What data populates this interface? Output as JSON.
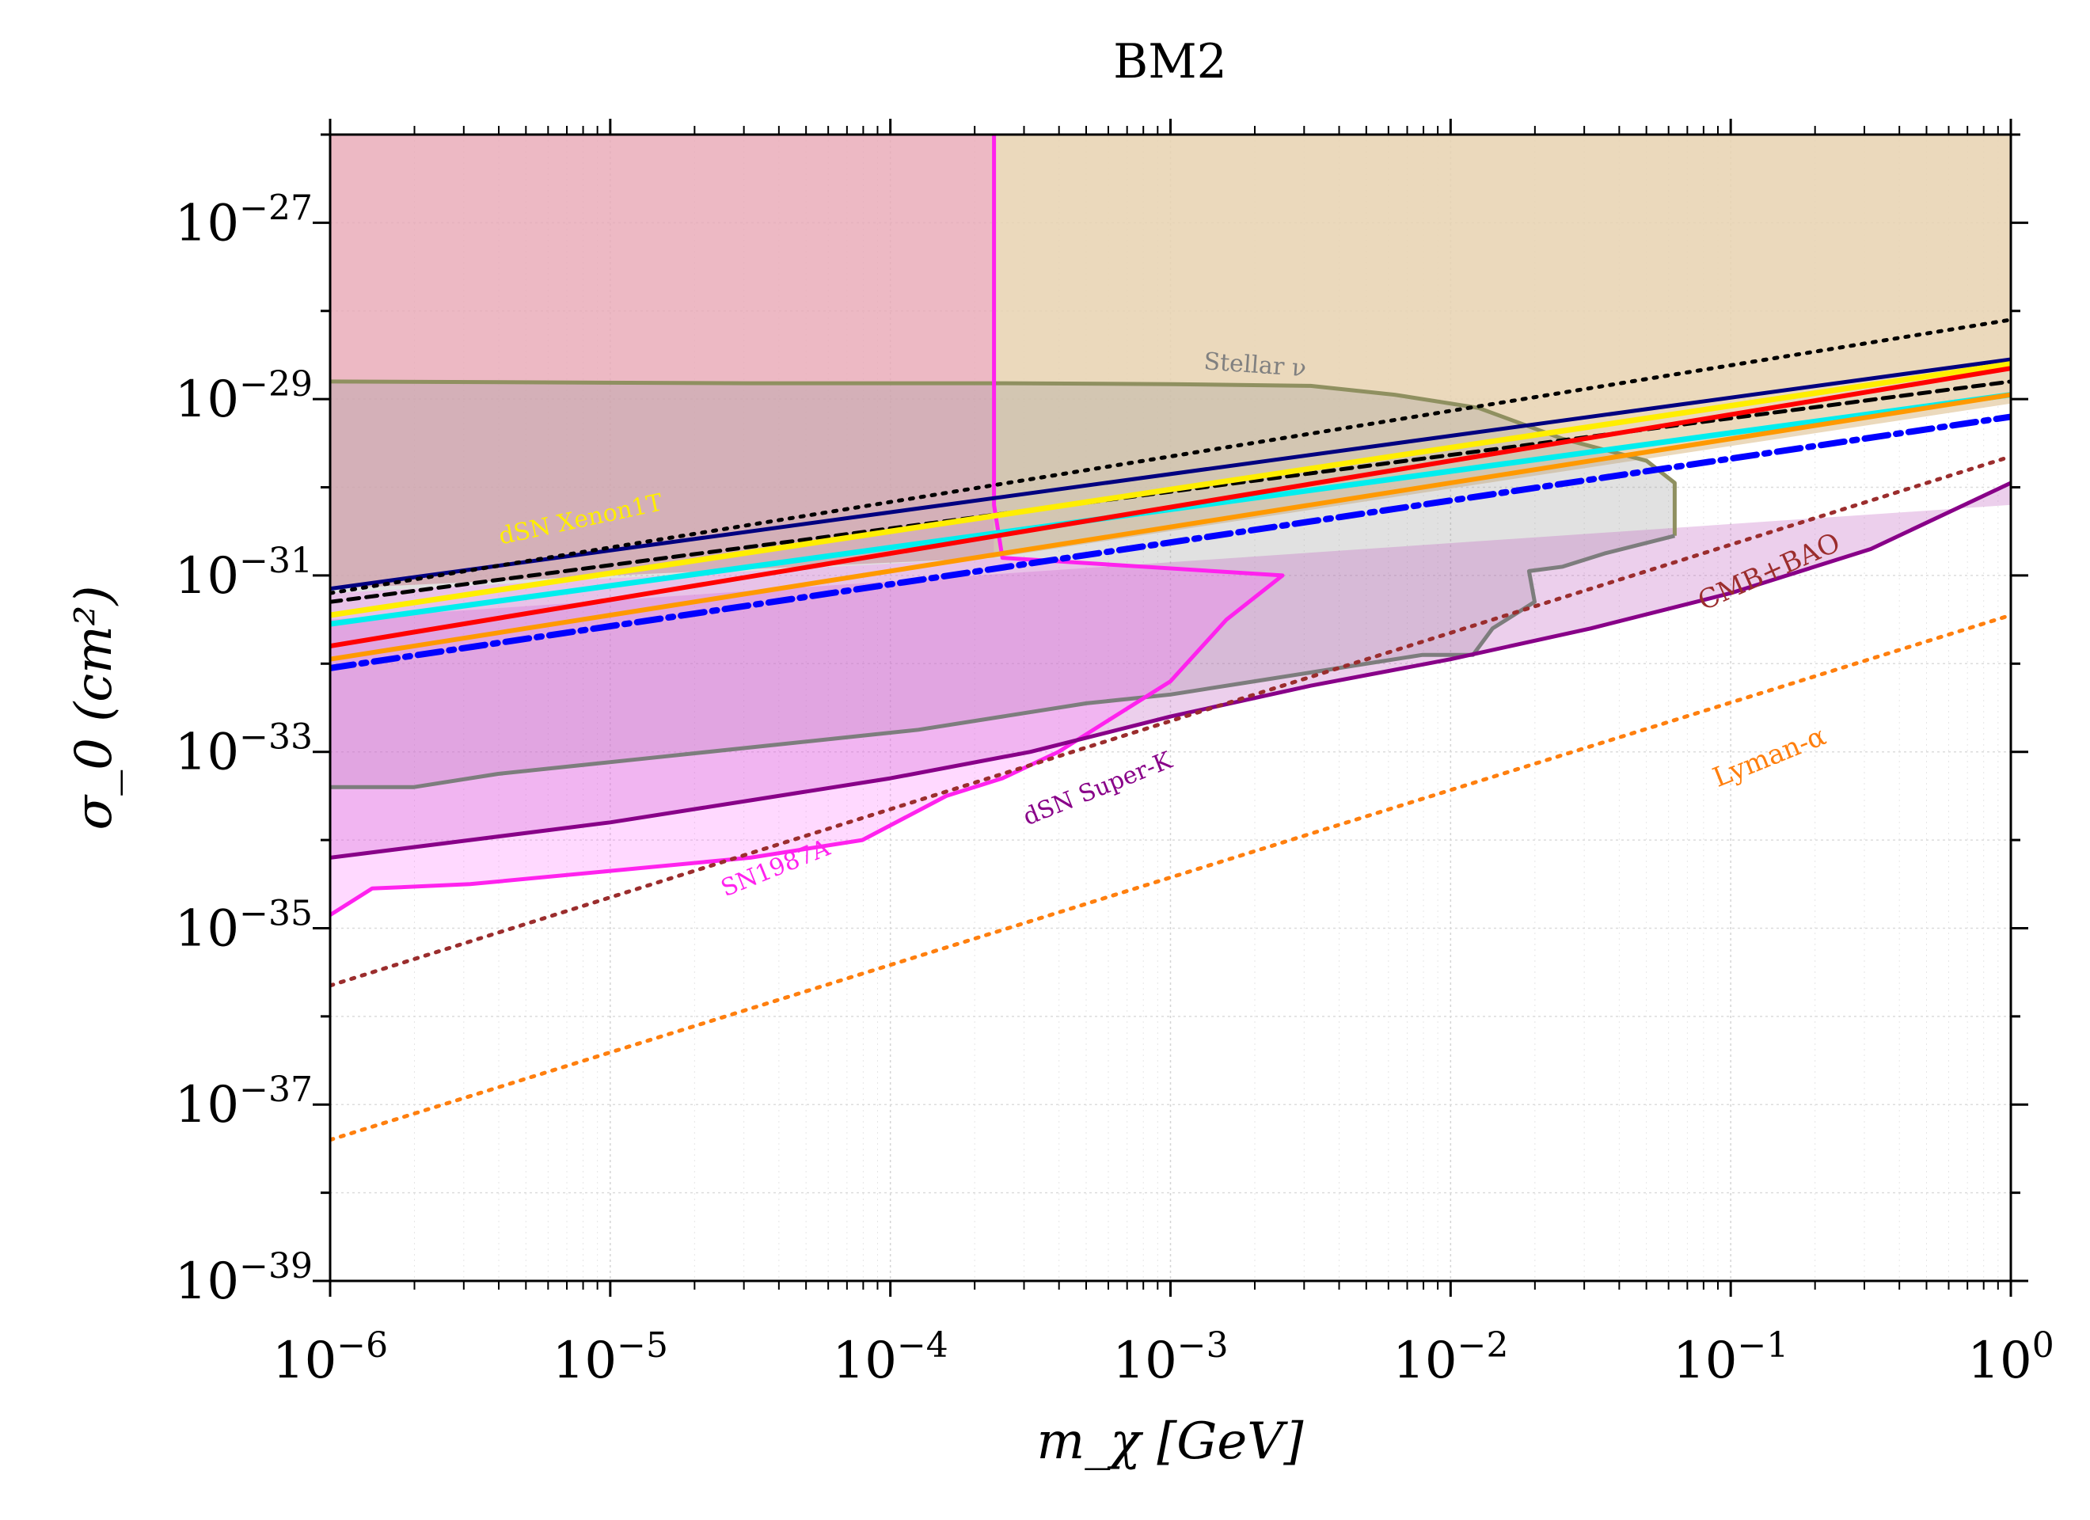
{
  "chart_data": {
    "type": "line",
    "title": "BM2",
    "xlabel": "m_χ [GeV]",
    "ylabel": "σ_0 (cm²)",
    "x_scale": "log",
    "y_scale": "log",
    "xlim_exp": [
      -6,
      0
    ],
    "ylim_exp": [
      -39,
      -26
    ],
    "x_ticks": [
      {
        "exp": -6,
        "base": "10",
        "sup": "−6"
      },
      {
        "exp": -5,
        "base": "10",
        "sup": "−5"
      },
      {
        "exp": -4,
        "base": "10",
        "sup": "−4"
      },
      {
        "exp": -3,
        "base": "10",
        "sup": "−3"
      },
      {
        "exp": -2,
        "base": "10",
        "sup": "−2"
      },
      {
        "exp": -1,
        "base": "10",
        "sup": "−1"
      },
      {
        "exp": 0,
        "base": "10",
        "sup": "0"
      }
    ],
    "y_ticks": [
      {
        "exp": -39,
        "base": "10",
        "sup": "−39"
      },
      {
        "exp": -37,
        "base": "10",
        "sup": "−37"
      },
      {
        "exp": -35,
        "base": "10",
        "sup": "−35"
      },
      {
        "exp": -33,
        "base": "10",
        "sup": "−33"
      },
      {
        "exp": -31,
        "base": "10",
        "sup": "−31"
      },
      {
        "exp": -29,
        "base": "10",
        "sup": "−29"
      },
      {
        "exp": -27,
        "base": "10",
        "sup": "−27"
      }
    ],
    "grid": true,
    "regions": [
      {
        "name": "excluded-red",
        "color": "#e8a8b5",
        "opacity": 0.8,
        "polygon": [
          [
            -6,
            -26
          ],
          [
            -3.63,
            -26
          ],
          [
            -3.63,
            -30.8
          ],
          [
            -6,
            -31.15
          ]
        ]
      },
      {
        "name": "excluded-tan",
        "color": "#e8d2b0",
        "opacity": 0.85,
        "polygon": [
          [
            -3.63,
            -26
          ],
          [
            0,
            -26
          ],
          [
            0,
            -29.05
          ],
          [
            -3.63,
            -30.8
          ]
        ]
      },
      {
        "name": "stellar-nu",
        "color": "#9a9a9a",
        "opacity": 0.3,
        "polygon": [
          [
            -6,
            -33.4
          ],
          [
            -5.7,
            -33.4
          ],
          [
            -5.4,
            -33.25
          ],
          [
            -5.1,
            -33.15
          ],
          [
            -4.8,
            -33.05
          ],
          [
            -4.5,
            -32.95
          ],
          [
            -4.2,
            -32.85
          ],
          [
            -3.9,
            -32.75
          ],
          [
            -3.6,
            -32.6
          ],
          [
            -3.3,
            -32.45
          ],
          [
            -3,
            -32.35
          ],
          [
            -2.7,
            -32.2
          ],
          [
            -2.4,
            -32.05
          ],
          [
            -2.1,
            -31.9
          ],
          [
            -1.92,
            -31.9
          ],
          [
            -1.85,
            -31.6
          ],
          [
            -1.7,
            -31.3
          ],
          [
            -1.72,
            -30.95
          ],
          [
            -1.6,
            -30.9
          ],
          [
            -1.45,
            -30.75
          ],
          [
            -1.2,
            -30.55
          ],
          [
            -1.2,
            -29.95
          ],
          [
            -1.3,
            -29.7
          ],
          [
            -1.6,
            -29.45
          ],
          [
            -1.9,
            -29.1
          ],
          [
            -2.2,
            -28.95
          ],
          [
            -2.5,
            -28.85
          ],
          [
            -3,
            -28.83
          ],
          [
            -3.6,
            -28.82
          ],
          [
            -4.5,
            -28.82
          ],
          [
            -6,
            -28.8
          ]
        ]
      },
      {
        "name": "dsn-superk",
        "color": "#c060c0",
        "opacity": 0.3,
        "polygon": [
          [
            -6,
            -34.2
          ],
          [
            -5.5,
            -34.0
          ],
          [
            -5,
            -33.8
          ],
          [
            -4.5,
            -33.55
          ],
          [
            -4,
            -33.3
          ],
          [
            -3.5,
            -33.0
          ],
          [
            -3,
            -32.6
          ],
          [
            -2.5,
            -32.25
          ],
          [
            -2,
            -31.95
          ],
          [
            -1.5,
            -31.6
          ],
          [
            -1,
            -31.2
          ],
          [
            -0.5,
            -30.7
          ],
          [
            0,
            -29.95
          ],
          [
            0,
            -30.2
          ],
          [
            -6,
            -31.5
          ]
        ]
      },
      {
        "name": "sn1987a",
        "color": "#ff66ff",
        "opacity": 0.25,
        "polygon": [
          [
            -6,
            -34.85
          ],
          [
            -5.85,
            -34.55
          ],
          [
            -5.5,
            -34.5
          ],
          [
            -5,
            -34.35
          ],
          [
            -4.5,
            -34.2
          ],
          [
            -4.1,
            -34.0
          ],
          [
            -3.8,
            -33.5
          ],
          [
            -3.6,
            -33.3
          ],
          [
            -3.4,
            -33.0
          ],
          [
            -3.2,
            -32.6
          ],
          [
            -3,
            -32.2
          ],
          [
            -2.8,
            -31.5
          ],
          [
            -2.6,
            -31.0
          ],
          [
            -3.6,
            -30.8
          ],
          [
            -6,
            -31.2
          ]
        ]
      }
    ],
    "series": [
      {
        "name": "Stellar ν",
        "color": "#8f9060",
        "width": 5,
        "dash": "",
        "points": [
          [
            -6,
            -28.8
          ],
          [
            -4.5,
            -28.82
          ],
          [
            -3.6,
            -28.82
          ],
          [
            -3,
            -28.83
          ],
          [
            -2.5,
            -28.85
          ],
          [
            -2.2,
            -28.95
          ],
          [
            -1.9,
            -29.1
          ],
          [
            -1.6,
            -29.45
          ],
          [
            -1.3,
            -29.7
          ],
          [
            -1.2,
            -29.95
          ],
          [
            -1.2,
            -30.55
          ]
        ]
      },
      {
        "name": "Stellar ν lower",
        "color": "#7d7d7d",
        "width": 5,
        "dash": "",
        "points": [
          [
            -6,
            -33.4
          ],
          [
            -5.7,
            -33.4
          ],
          [
            -5.4,
            -33.25
          ],
          [
            -5.1,
            -33.15
          ],
          [
            -4.8,
            -33.05
          ],
          [
            -4.5,
            -32.95
          ],
          [
            -4.2,
            -32.85
          ],
          [
            -3.9,
            -32.75
          ],
          [
            -3.6,
            -32.6
          ],
          [
            -3.3,
            -32.45
          ],
          [
            -3,
            -32.35
          ],
          [
            -2.7,
            -32.2
          ],
          [
            -2.4,
            -32.05
          ],
          [
            -2.1,
            -31.9
          ],
          [
            -1.92,
            -31.9
          ],
          [
            -1.85,
            -31.6
          ],
          [
            -1.7,
            -31.3
          ],
          [
            -1.72,
            -30.95
          ],
          [
            -1.6,
            -30.9
          ],
          [
            -1.45,
            -30.75
          ],
          [
            -1.2,
            -30.55
          ]
        ]
      },
      {
        "name": "SN1987A",
        "color": "#ff22ee",
        "width": 5,
        "dash": "",
        "points": [
          [
            -6,
            -34.85
          ],
          [
            -5.85,
            -34.55
          ],
          [
            -5.5,
            -34.5
          ],
          [
            -5,
            -34.35
          ],
          [
            -4.5,
            -34.2
          ],
          [
            -4.1,
            -34.0
          ],
          [
            -3.8,
            -33.5
          ],
          [
            -3.6,
            -33.3
          ],
          [
            -3.4,
            -33.0
          ],
          [
            -3.2,
            -32.6
          ],
          [
            -3,
            -32.2
          ],
          [
            -2.8,
            -31.5
          ],
          [
            -2.6,
            -31.0
          ],
          [
            -3.6,
            -30.8
          ],
          [
            -3.63,
            -30.2
          ],
          [
            -3.63,
            -26
          ]
        ]
      },
      {
        "name": "dSN Super-K",
        "color": "#880088",
        "width": 5,
        "dash": "",
        "points": [
          [
            -6,
            -34.2
          ],
          [
            -5.5,
            -34.0
          ],
          [
            -5,
            -33.8
          ],
          [
            -4.5,
            -33.55
          ],
          [
            -4,
            -33.3
          ],
          [
            -3.5,
            -33.0
          ],
          [
            -3,
            -32.6
          ],
          [
            -2.5,
            -32.25
          ],
          [
            -2,
            -31.95
          ],
          [
            -1.5,
            -31.6
          ],
          [
            -1,
            -31.2
          ],
          [
            -0.5,
            -30.7
          ],
          [
            0,
            -29.95
          ]
        ]
      },
      {
        "name": "CMB+BAO",
        "color": "#9b2d2d",
        "width": 5,
        "dash": "4 10",
        "points": [
          [
            -6,
            -35.65
          ],
          [
            0,
            -29.65
          ]
        ]
      },
      {
        "name": "Lyman-α",
        "color": "#ff7f0e",
        "width": 5,
        "dash": "4 10",
        "points": [
          [
            -6,
            -37.4
          ],
          [
            0,
            -31.45
          ]
        ]
      },
      {
        "name": "navy",
        "color": "#000080",
        "width": 5,
        "dash": "",
        "points": [
          [
            -6,
            -31.15
          ],
          [
            0,
            -28.55
          ]
        ]
      },
      {
        "name": "black dotted",
        "color": "#000000",
        "width": 5,
        "dash": "4 10",
        "points": [
          [
            -6,
            -31.2
          ],
          [
            0,
            -28.1
          ]
        ]
      },
      {
        "name": "black dashed",
        "color": "#000000",
        "width": 5,
        "dash": "14 9",
        "points": [
          [
            -6,
            -31.3
          ],
          [
            0,
            -28.8
          ]
        ]
      },
      {
        "name": "yellow",
        "color": "#ffee00",
        "width": 7,
        "dash": "",
        "points": [
          [
            -6,
            -31.45
          ],
          [
            0,
            -28.6
          ]
        ]
      },
      {
        "name": "cyan",
        "color": "#00eeee",
        "width": 7,
        "dash": "",
        "points": [
          [
            -6,
            -31.55
          ],
          [
            0,
            -28.95
          ]
        ]
      },
      {
        "name": "red",
        "color": "#ff0000",
        "width": 6,
        "dash": "",
        "points": [
          [
            -6,
            -31.8
          ],
          [
            0,
            -28.65
          ]
        ]
      },
      {
        "name": "orange",
        "color": "#ff9900",
        "width": 6,
        "dash": "",
        "points": [
          [
            -6,
            -31.95
          ],
          [
            0,
            -28.95
          ]
        ]
      },
      {
        "name": "blue dash-dot",
        "color": "#0000ff",
        "width": 8,
        "dash": "30 10 6 10",
        "points": [
          [
            -6,
            -32.05
          ],
          [
            0,
            -29.2
          ]
        ]
      }
    ],
    "annotations": [
      {
        "text": "Stellar ν",
        "color": "#808080",
        "at": [
          -2.7,
          -28.7
        ],
        "angle": 4,
        "size": 30
      },
      {
        "text": "dSN Xenon1T",
        "color": "#ffee00",
        "at": [
          -5.1,
          -30.45
        ],
        "angle": -12,
        "size": 30
      },
      {
        "text": "CMB+BAO",
        "color": "#9b2d2d",
        "at": [
          -0.85,
          -31.05
        ],
        "angle": -24,
        "size": 34
      },
      {
        "text": "Lyman-α",
        "color": "#ff7f0e",
        "at": [
          -0.85,
          -33.15
        ],
        "angle": -22,
        "size": 34
      },
      {
        "text": "dSN Super-K",
        "color": "#880088",
        "at": [
          -3.25,
          -33.5
        ],
        "angle": -22,
        "size": 30
      },
      {
        "text": "SN1987A",
        "color": "#ff22ee",
        "at": [
          -4.4,
          -34.4
        ],
        "angle": -22,
        "size": 30
      }
    ]
  }
}
